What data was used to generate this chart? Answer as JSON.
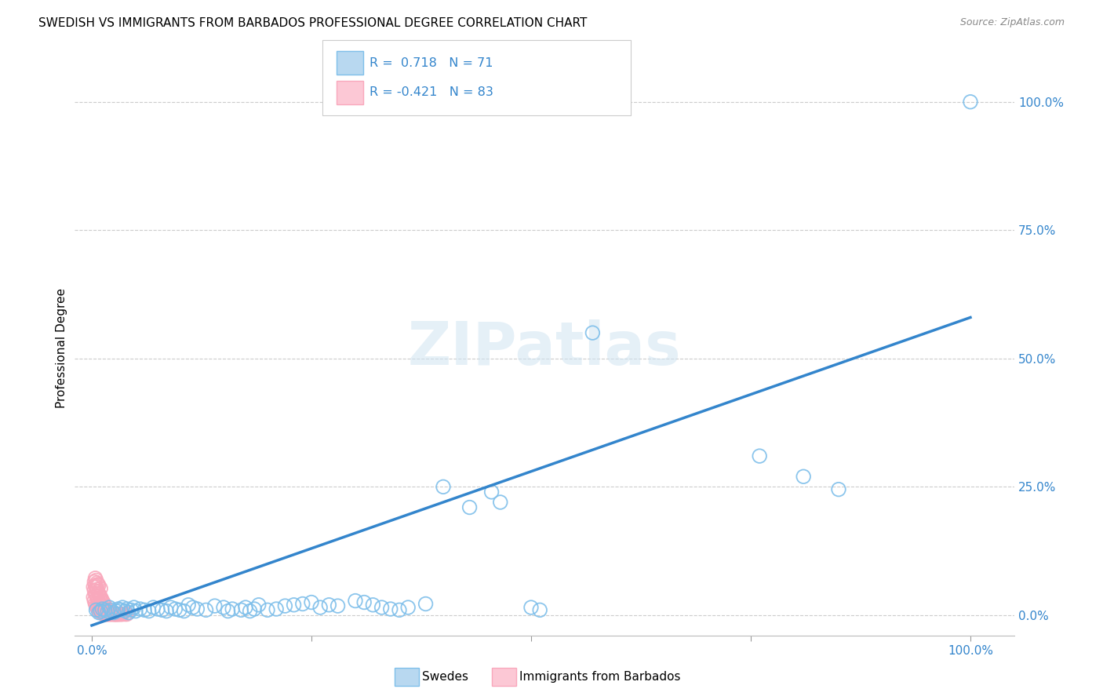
{
  "title": "SWEDISH VS IMMIGRANTS FROM BARBADOS PROFESSIONAL DEGREE CORRELATION CHART",
  "source": "Source: ZipAtlas.com",
  "ylabel": "Professional Degree",
  "blue_color": "#7fbfea",
  "pink_color": "#f9a8bc",
  "line_color": "#3385cc",
  "watermark_text": "ZIPatlas",
  "blue_R": 0.718,
  "blue_N": 71,
  "pink_R": -0.421,
  "pink_N": 83,
  "ytick_vals": [
    0.0,
    0.25,
    0.5,
    0.75,
    1.0
  ],
  "ytick_labels": [
    "0.0%",
    "25.0%",
    "50.0%",
    "75.0%",
    "100.0%"
  ],
  "xtick_vals": [
    0.0,
    0.25,
    0.5,
    0.75,
    1.0
  ],
  "xtick_labels": [
    "0.0%",
    "",
    "",
    "",
    "100.0%"
  ],
  "xlim": [
    -0.02,
    1.05
  ],
  "ylim": [
    -0.04,
    1.08
  ],
  "line_x0": 0.0,
  "line_y0": -0.02,
  "line_x1": 1.0,
  "line_y1": 0.58,
  "blue_x": [
    0.005,
    0.008,
    0.01,
    0.012,
    0.015,
    0.018,
    0.02,
    0.022,
    0.025,
    0.028,
    0.03,
    0.033,
    0.035,
    0.038,
    0.04,
    0.042,
    0.045,
    0.048,
    0.05,
    0.055,
    0.06,
    0.065,
    0.07,
    0.075,
    0.08,
    0.085,
    0.09,
    0.095,
    0.1,
    0.105,
    0.11,
    0.115,
    0.12,
    0.13,
    0.14,
    0.15,
    0.155,
    0.16,
    0.17,
    0.175,
    0.18,
    0.185,
    0.19,
    0.2,
    0.21,
    0.22,
    0.23,
    0.24,
    0.25,
    0.26,
    0.27,
    0.28,
    0.3,
    0.31,
    0.32,
    0.33,
    0.34,
    0.35,
    0.36,
    0.38,
    0.4,
    0.43,
    0.455,
    0.465,
    0.5,
    0.51,
    0.57,
    0.76,
    0.81,
    0.85,
    1.0
  ],
  "blue_y": [
    0.01,
    0.005,
    0.008,
    0.012,
    0.01,
    0.007,
    0.015,
    0.01,
    0.005,
    0.008,
    0.012,
    0.01,
    0.015,
    0.008,
    0.012,
    0.005,
    0.01,
    0.015,
    0.008,
    0.012,
    0.01,
    0.008,
    0.015,
    0.012,
    0.01,
    0.008,
    0.015,
    0.012,
    0.01,
    0.008,
    0.02,
    0.015,
    0.012,
    0.01,
    0.018,
    0.015,
    0.008,
    0.012,
    0.01,
    0.015,
    0.008,
    0.012,
    0.02,
    0.01,
    0.012,
    0.018,
    0.02,
    0.022,
    0.025,
    0.015,
    0.02,
    0.018,
    0.028,
    0.025,
    0.02,
    0.015,
    0.012,
    0.01,
    0.015,
    0.022,
    0.25,
    0.21,
    0.24,
    0.22,
    0.015,
    0.01,
    0.55,
    0.31,
    0.27,
    0.245,
    1.0
  ],
  "pink_x": [
    0.002,
    0.002,
    0.003,
    0.003,
    0.003,
    0.004,
    0.004,
    0.004,
    0.004,
    0.005,
    0.005,
    0.005,
    0.005,
    0.006,
    0.006,
    0.006,
    0.006,
    0.007,
    0.007,
    0.007,
    0.007,
    0.008,
    0.008,
    0.008,
    0.008,
    0.009,
    0.009,
    0.009,
    0.01,
    0.01,
    0.01,
    0.01,
    0.011,
    0.011,
    0.011,
    0.012,
    0.012,
    0.012,
    0.013,
    0.013,
    0.013,
    0.014,
    0.014,
    0.014,
    0.015,
    0.015,
    0.015,
    0.016,
    0.016,
    0.017,
    0.017,
    0.018,
    0.018,
    0.019,
    0.019,
    0.02,
    0.02,
    0.021,
    0.021,
    0.022,
    0.022,
    0.023,
    0.023,
    0.024,
    0.024,
    0.025,
    0.025,
    0.026,
    0.026,
    0.027,
    0.027,
    0.028,
    0.028,
    0.029,
    0.03,
    0.03,
    0.031,
    0.032,
    0.033,
    0.034,
    0.035,
    0.038,
    0.04
  ],
  "pink_y": [
    0.035,
    0.055,
    0.028,
    0.048,
    0.065,
    0.022,
    0.042,
    0.058,
    0.072,
    0.018,
    0.038,
    0.055,
    0.068,
    0.015,
    0.032,
    0.05,
    0.063,
    0.012,
    0.028,
    0.045,
    0.06,
    0.01,
    0.025,
    0.042,
    0.058,
    0.008,
    0.022,
    0.038,
    0.006,
    0.02,
    0.035,
    0.052,
    0.005,
    0.018,
    0.032,
    0.004,
    0.015,
    0.028,
    0.003,
    0.012,
    0.025,
    0.002,
    0.01,
    0.022,
    0.002,
    0.008,
    0.018,
    0.002,
    0.012,
    0.002,
    0.01,
    0.002,
    0.008,
    0.002,
    0.006,
    0.002,
    0.005,
    0.002,
    0.004,
    0.002,
    0.004,
    0.002,
    0.003,
    0.002,
    0.003,
    0.002,
    0.003,
    0.002,
    0.002,
    0.002,
    0.002,
    0.002,
    0.002,
    0.002,
    0.002,
    0.002,
    0.002,
    0.002,
    0.002,
    0.002,
    0.002,
    0.002,
    0.002
  ]
}
